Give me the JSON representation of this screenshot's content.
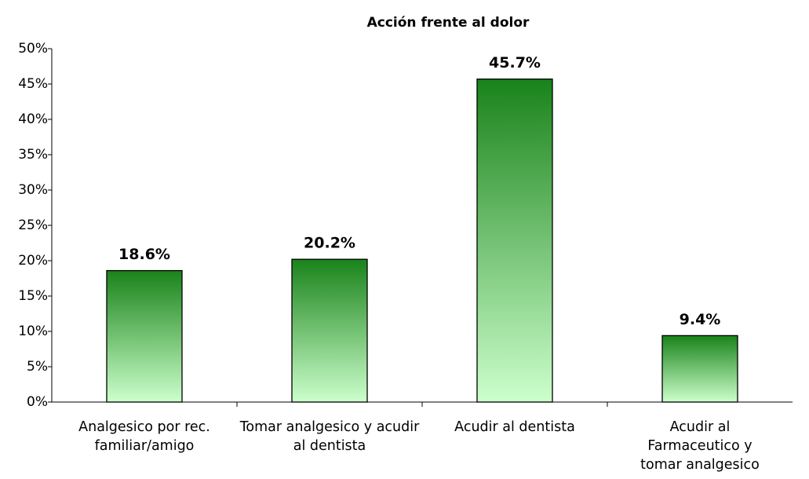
{
  "chart_data": {
    "type": "bar",
    "title": "Acción frente al dolor",
    "categories": [
      "Analgesico por rec. familiar/amigo",
      "Tomar analgesico y acudir al dentista",
      "Acudir al dentista",
      "Acudir al Farmaceutico y tomar analgesico"
    ],
    "values": [
      18.6,
      20.2,
      45.7,
      9.4
    ],
    "value_labels": [
      "18.6%",
      "20.2%",
      "45.7%",
      "9.4%"
    ],
    "color": "#1a831a",
    "ylim": [
      0,
      50
    ],
    "yticks": [
      {
        "value": 0,
        "label": "0%"
      },
      {
        "value": 5,
        "label": "5%"
      },
      {
        "value": 10,
        "label": "10%"
      },
      {
        "value": 15,
        "label": "15%"
      },
      {
        "value": 20,
        "label": "20%"
      },
      {
        "value": 25,
        "label": "25%"
      },
      {
        "value": 30,
        "label": "30%"
      },
      {
        "value": 35,
        "label": "35%"
      },
      {
        "value": 40,
        "label": "40%"
      },
      {
        "value": 45,
        "label": "45%"
      },
      {
        "value": 50,
        "label": "50%"
      }
    ],
    "grid": false
  }
}
